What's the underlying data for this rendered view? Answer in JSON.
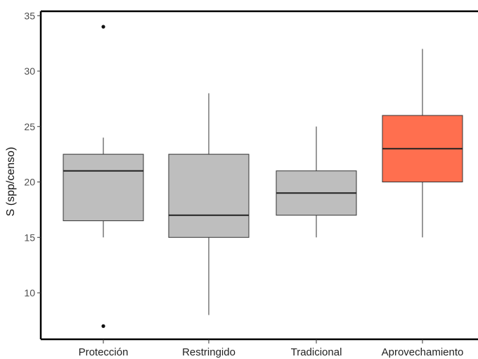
{
  "chart_data": {
    "type": "box",
    "title": "",
    "xlabel": "",
    "ylabel": "S (spp/censo)",
    "ylim": [
      6,
      35
    ],
    "yticks": [
      10,
      15,
      20,
      25,
      30,
      35
    ],
    "grid": false,
    "categories": [
      "Protección",
      "Restringido",
      "Tradicional",
      "Aprovechamiento"
    ],
    "boxes": [
      {
        "category": "Protección",
        "whisker_low": 15,
        "q1": 16.5,
        "median": 21,
        "q3": 22.5,
        "whisker_high": 24,
        "outliers": [
          34,
          7
        ],
        "fill": "#bebebe"
      },
      {
        "category": "Restringido",
        "whisker_low": 8,
        "q1": 15,
        "median": 17,
        "q3": 22.5,
        "whisker_high": 28,
        "outliers": [],
        "fill": "#bebebe"
      },
      {
        "category": "Tradicional",
        "whisker_low": 15,
        "q1": 17,
        "median": 19,
        "q3": 21,
        "whisker_high": 25,
        "outliers": [],
        "fill": "#bebebe"
      },
      {
        "category": "Aprovechamiento",
        "whisker_low": 15,
        "q1": 20,
        "median": 23,
        "q3": 26,
        "whisker_high": 32,
        "outliers": [],
        "fill": "#ff6f4f"
      }
    ]
  }
}
